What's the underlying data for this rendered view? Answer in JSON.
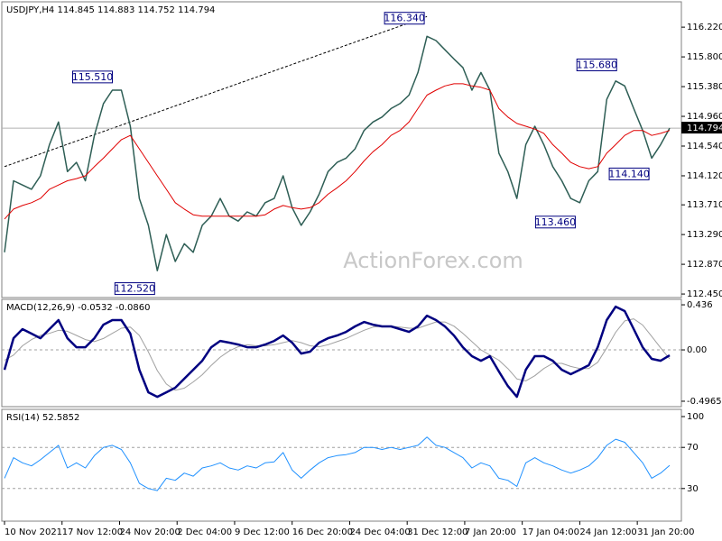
{
  "chart_data": [
    {
      "type": "line",
      "title": "USDJPY,H4  114.845 114.883 114.752 114.794",
      "watermark": "ActionForex.com",
      "x": [
        0,
        1,
        2,
        3,
        4,
        5,
        6,
        7,
        8,
        9,
        10,
        11,
        12,
        13,
        14,
        15,
        16,
        17,
        18,
        19,
        20,
        21,
        22,
        23,
        24,
        25,
        26,
        27,
        28,
        29,
        30,
        31,
        32,
        33,
        34,
        35,
        36,
        37,
        38,
        39,
        40,
        41,
        42,
        43,
        44,
        45,
        46,
        47,
        48,
        49,
        50,
        51,
        52,
        53,
        54,
        55,
        56,
        57,
        58,
        59,
        60,
        61,
        62,
        63,
        64,
        65,
        66,
        67,
        68,
        69,
        70,
        71,
        72,
        73,
        74
      ],
      "xlim": [
        0,
        74
      ],
      "ylim": [
        112.4,
        116.54
      ],
      "yticks": [
        {
          "value": 116.22,
          "label": "116.220"
        },
        {
          "value": 115.8,
          "label": "115.800"
        },
        {
          "value": 115.38,
          "label": "115.380"
        },
        {
          "value": 114.96,
          "label": "114.960"
        },
        {
          "value": 114.54,
          "label": "114.540"
        },
        {
          "value": 114.12,
          "label": "114.120"
        },
        {
          "value": 113.71,
          "label": "113.710"
        },
        {
          "value": 113.29,
          "label": "113.290"
        },
        {
          "value": 112.87,
          "label": "112.870"
        },
        {
          "value": 112.45,
          "label": "112.450"
        }
      ],
      "series": [
        {
          "color": "#2e5e55",
          "width": 1.5,
          "values": [
            113.04,
            114.05,
            113.99,
            113.93,
            114.12,
            114.56,
            114.88,
            114.18,
            114.31,
            114.05,
            114.69,
            115.14,
            115.33,
            115.33,
            114.82,
            113.8,
            113.42,
            112.78,
            113.29,
            112.91,
            113.16,
            113.04,
            113.42,
            113.55,
            113.8,
            113.55,
            113.48,
            113.61,
            113.55,
            113.74,
            113.8,
            114.12,
            113.67,
            113.42,
            113.61,
            113.86,
            114.18,
            114.31,
            114.37,
            114.5,
            114.76,
            114.88,
            114.95,
            115.07,
            115.14,
            115.26,
            115.58,
            116.09,
            116.03,
            115.9,
            115.77,
            115.65,
            115.33,
            115.58,
            115.33,
            114.44,
            114.18,
            113.8,
            114.56,
            114.82,
            114.56,
            114.25,
            114.05,
            113.8,
            113.74,
            114.05,
            114.18,
            115.2,
            115.46,
            115.39,
            115.07,
            114.76,
            114.37,
            114.56,
            114.794
          ]
        },
        {
          "color": "#e00000",
          "width": 1,
          "values": [
            113.51,
            113.65,
            113.7,
            113.74,
            113.8,
            113.93,
            113.99,
            114.05,
            114.08,
            114.12,
            114.25,
            114.37,
            114.5,
            114.63,
            114.69,
            114.5,
            114.31,
            114.12,
            113.93,
            113.74,
            113.65,
            113.57,
            113.55,
            113.55,
            113.55,
            113.55,
            113.55,
            113.55,
            113.55,
            113.57,
            113.65,
            113.7,
            113.67,
            113.65,
            113.67,
            113.74,
            113.86,
            113.95,
            114.05,
            114.18,
            114.33,
            114.46,
            114.56,
            114.69,
            114.76,
            114.88,
            115.07,
            115.26,
            115.33,
            115.39,
            115.42,
            115.42,
            115.39,
            115.37,
            115.33,
            115.07,
            114.95,
            114.86,
            114.82,
            114.78,
            114.72,
            114.56,
            114.44,
            114.31,
            114.25,
            114.22,
            114.25,
            114.44,
            114.56,
            114.69,
            114.76,
            114.76,
            114.69,
            114.72,
            114.76
          ]
        }
      ],
      "last_price": 114.794,
      "trendline": {
        "x": [
          0,
          47
        ],
        "y": [
          114.25,
          116.37
        ]
      },
      "annotations": [
        {
          "x": 47,
          "value": 116.34,
          "label": "116.340"
        },
        {
          "x": 12.3,
          "value": 115.51,
          "label": "115.510"
        },
        {
          "x": 68.4,
          "value": 115.68,
          "label": "115.680"
        },
        {
          "x": 72,
          "value": 114.14,
          "label": "114.140"
        },
        {
          "x": 63.8,
          "value": 113.46,
          "label": "113.460"
        },
        {
          "x": 17,
          "value": 112.52,
          "label": "112.520"
        }
      ]
    },
    {
      "type": "line",
      "title": "MACD(12,26,9) -0.0532 -0.0860",
      "x": [
        0,
        1,
        2,
        3,
        4,
        5,
        6,
        7,
        8,
        9,
        10,
        11,
        12,
        13,
        14,
        15,
        16,
        17,
        18,
        19,
        20,
        21,
        22,
        23,
        24,
        25,
        26,
        27,
        28,
        29,
        30,
        31,
        32,
        33,
        34,
        35,
        36,
        37,
        38,
        39,
        40,
        41,
        42,
        43,
        44,
        45,
        46,
        47,
        48,
        49,
        50,
        51,
        52,
        53,
        54,
        55,
        56,
        57,
        58,
        59,
        60,
        61,
        62,
        63,
        64,
        65,
        66,
        67,
        68,
        69,
        70,
        71,
        72,
        73,
        74
      ],
      "xlim": [
        0,
        74
      ],
      "ylim": [
        -0.549,
        0.48
      ],
      "yticks": [
        0.436,
        {
          "value": 0,
          "label": "0.00"
        },
        -0.4965
      ],
      "levels": [
        0
      ],
      "series": [
        {
          "color": "#a0a0a0",
          "width": 1,
          "values": [
            -0.1,
            -0.05,
            0.04,
            0.1,
            0.14,
            0.16,
            0.19,
            0.18,
            0.14,
            0.1,
            0.08,
            0.11,
            0.16,
            0.21,
            0.22,
            0.14,
            -0.02,
            -0.2,
            -0.33,
            -0.39,
            -0.37,
            -0.31,
            -0.24,
            -0.15,
            -0.07,
            -0.01,
            0.03,
            0.05,
            0.04,
            0.04,
            0.05,
            0.07,
            0.09,
            0.07,
            0.04,
            0.03,
            0.05,
            0.08,
            0.11,
            0.15,
            0.19,
            0.22,
            0.23,
            0.23,
            0.22,
            0.21,
            0.21,
            0.24,
            0.27,
            0.27,
            0.23,
            0.16,
            0.08,
            0,
            -0.05,
            -0.1,
            -0.18,
            -0.28,
            -0.3,
            -0.25,
            -0.18,
            -0.13,
            -0.13,
            -0.16,
            -0.18,
            -0.18,
            -0.12,
            0.02,
            0.17,
            0.28,
            0.3,
            0.24,
            0.13,
            0.02,
            -0.086
          ]
        },
        {
          "color": "#000080",
          "width": 2.5,
          "values": [
            -0.192,
            0.113,
            0.201,
            0.157,
            0.113,
            0.201,
            0.288,
            0.113,
            0.026,
            0.026,
            0.113,
            0.244,
            0.288,
            0.288,
            0.157,
            -0.192,
            -0.41,
            -0.454,
            -0.41,
            -0.366,
            -0.279,
            -0.192,
            -0.105,
            0.026,
            0.087,
            0.07,
            0.052,
            0.026,
            0.026,
            0.052,
            0.087,
            0.139,
            0.07,
            -0.035,
            -0.017,
            0.07,
            0.113,
            0.139,
            0.174,
            0.227,
            0.27,
            0.244,
            0.227,
            0.227,
            0.201,
            0.174,
            0.227,
            0.331,
            0.288,
            0.227,
            0.139,
            0.026,
            -0.061,
            -0.105,
            -0.061,
            -0.209,
            -0.349,
            -0.454,
            -0.192,
            -0.061,
            -0.061,
            -0.105,
            -0.192,
            -0.235,
            -0.192,
            -0.148,
            0.026,
            0.288,
            0.418,
            0.375,
            0.201,
            0.026,
            -0.087,
            -0.105,
            -0.053
          ]
        }
      ]
    },
    {
      "type": "line",
      "title": "RSI(14) 52.5852",
      "x": [
        0,
        1,
        2,
        3,
        4,
        5,
        6,
        7,
        8,
        9,
        10,
        11,
        12,
        13,
        14,
        15,
        16,
        17,
        18,
        19,
        20,
        21,
        22,
        23,
        24,
        25,
        26,
        27,
        28,
        29,
        30,
        31,
        32,
        33,
        34,
        35,
        36,
        37,
        38,
        39,
        40,
        41,
        42,
        43,
        44,
        45,
        46,
        47,
        48,
        49,
        50,
        51,
        52,
        53,
        54,
        55,
        56,
        57,
        58,
        59,
        60,
        61,
        62,
        63,
        64,
        65,
        66,
        67,
        68,
        69,
        70,
        71,
        72,
        73,
        74
      ],
      "xlim": [
        0,
        74
      ],
      "ylim": [
        0,
        100
      ],
      "yticks": [
        100,
        70,
        30
      ],
      "levels": [
        70,
        30
      ],
      "xticks": [
        {
          "value": 0,
          "label": "10 Nov 2021"
        },
        {
          "value": 6.4,
          "label": "17 Nov 12:00"
        },
        {
          "value": 12.8,
          "label": "24 Nov 20:00"
        },
        {
          "value": 19.2,
          "label": "2 Dec 04:00"
        },
        {
          "value": 25.6,
          "label": "9 Dec 12:00"
        },
        {
          "value": 32,
          "label": "16 Dec 20:00"
        },
        {
          "value": 38.4,
          "label": "24 Dec 04:00"
        },
        {
          "value": 44.8,
          "label": "31 Dec 12:00"
        },
        {
          "value": 51.2,
          "label": "7 Jan 20:00"
        },
        {
          "value": 57.6,
          "label": "17 Jan 04:00"
        },
        {
          "value": 64,
          "label": "24 Jan 12:00"
        },
        {
          "value": 70.4,
          "label": "31 Jan 20:00"
        }
      ],
      "series": [
        {
          "color": "#1e90ff",
          "width": 1,
          "values": [
            40,
            60,
            55,
            52,
            58,
            65,
            72,
            50,
            55,
            50,
            62,
            70,
            72,
            68,
            55,
            35,
            30,
            28,
            40,
            38,
            45,
            42,
            50,
            52,
            55,
            50,
            48,
            52,
            50,
            55,
            56,
            65,
            48,
            40,
            48,
            55,
            60,
            62,
            63,
            65,
            70,
            70,
            68,
            70,
            68,
            70,
            72,
            80,
            72,
            70,
            65,
            60,
            50,
            55,
            52,
            40,
            38,
            32,
            55,
            60,
            55,
            52,
            48,
            45,
            48,
            52,
            60,
            72,
            78,
            75,
            65,
            55,
            40,
            45,
            52.5852
          ]
        }
      ]
    }
  ]
}
